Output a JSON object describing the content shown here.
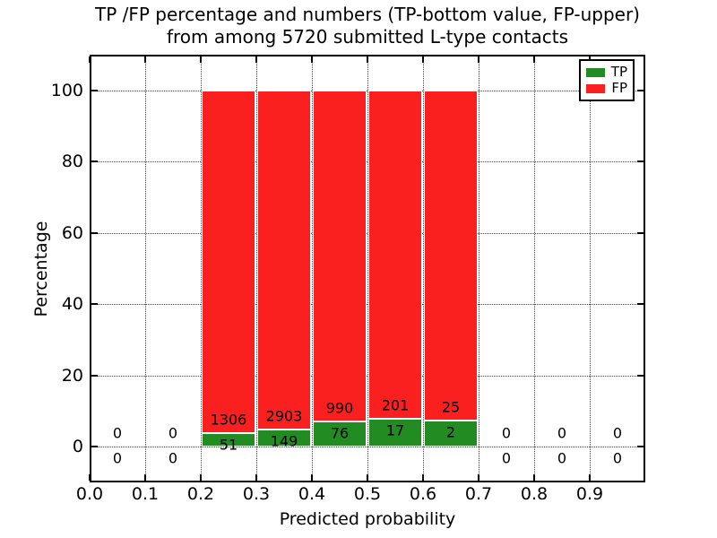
{
  "title": {
    "line1": "TP /FP percentage and numbers (TP-bottom value, FP-upper)",
    "line2": "from among 5720 submitted L-type contacts"
  },
  "axes": {
    "xlabel": "Predicted probability",
    "ylabel": "Percentage",
    "xtick_labels": [
      "0.0",
      "0.1",
      "0.2",
      "0.3",
      "0.4",
      "0.5",
      "0.6",
      "0.7",
      "0.8",
      "0.9"
    ],
    "ytick_labels": [
      "0",
      "20",
      "40",
      "60",
      "80",
      "100"
    ]
  },
  "legend": {
    "position": "upper right",
    "entries": [
      {
        "label": "TP",
        "color": "#228b22"
      },
      {
        "label": "FP",
        "color": "#fb2020"
      }
    ]
  },
  "chart_data": {
    "type": "bar",
    "stacked": true,
    "title": "TP /FP percentage and numbers (TP-bottom value, FP-upper) from among 5720 submitted L-type contacts",
    "xlabel": "Predicted probability",
    "ylabel": "Percentage",
    "xlim": [
      0.0,
      1.0
    ],
    "ylim": [
      -10,
      110
    ],
    "xticks": [
      0.0,
      0.1,
      0.2,
      0.3,
      0.4,
      0.5,
      0.6,
      0.7,
      0.8,
      0.9
    ],
    "yticks": [
      0,
      20,
      40,
      60,
      80,
      100
    ],
    "grid": "dotted",
    "total_submitted": 5720,
    "series": [
      {
        "name": "TP",
        "color": "#228b22",
        "stack_order": "bottom"
      },
      {
        "name": "FP",
        "color": "#fb2020",
        "stack_order": "top"
      }
    ],
    "bins": [
      {
        "range": [
          0.0,
          0.1
        ],
        "tp": 0,
        "fp": 0,
        "tp_percent": 0,
        "fp_percent": 0
      },
      {
        "range": [
          0.1,
          0.2
        ],
        "tp": 0,
        "fp": 0,
        "tp_percent": 0,
        "fp_percent": 0
      },
      {
        "range": [
          0.2,
          0.3
        ],
        "tp": 51,
        "fp": 1306,
        "tp_percent": 3.76,
        "fp_percent": 96.24
      },
      {
        "range": [
          0.3,
          0.4
        ],
        "tp": 149,
        "fp": 2903,
        "tp_percent": 4.88,
        "fp_percent": 95.12
      },
      {
        "range": [
          0.4,
          0.5
        ],
        "tp": 76,
        "fp": 990,
        "tp_percent": 7.13,
        "fp_percent": 92.87
      },
      {
        "range": [
          0.5,
          0.6
        ],
        "tp": 17,
        "fp": 201,
        "tp_percent": 7.8,
        "fp_percent": 92.2
      },
      {
        "range": [
          0.6,
          0.7
        ],
        "tp": 2,
        "fp": 25,
        "tp_percent": 7.41,
        "fp_percent": 92.59
      },
      {
        "range": [
          0.7,
          0.8
        ],
        "tp": 0,
        "fp": 0,
        "tp_percent": 0,
        "fp_percent": 0
      },
      {
        "range": [
          0.8,
          0.9
        ],
        "tp": 0,
        "fp": 0,
        "tp_percent": 0,
        "fp_percent": 0
      },
      {
        "range": [
          0.9,
          1.0
        ],
        "tp": 0,
        "fp": 0,
        "tp_percent": 0,
        "fp_percent": 0
      }
    ]
  }
}
